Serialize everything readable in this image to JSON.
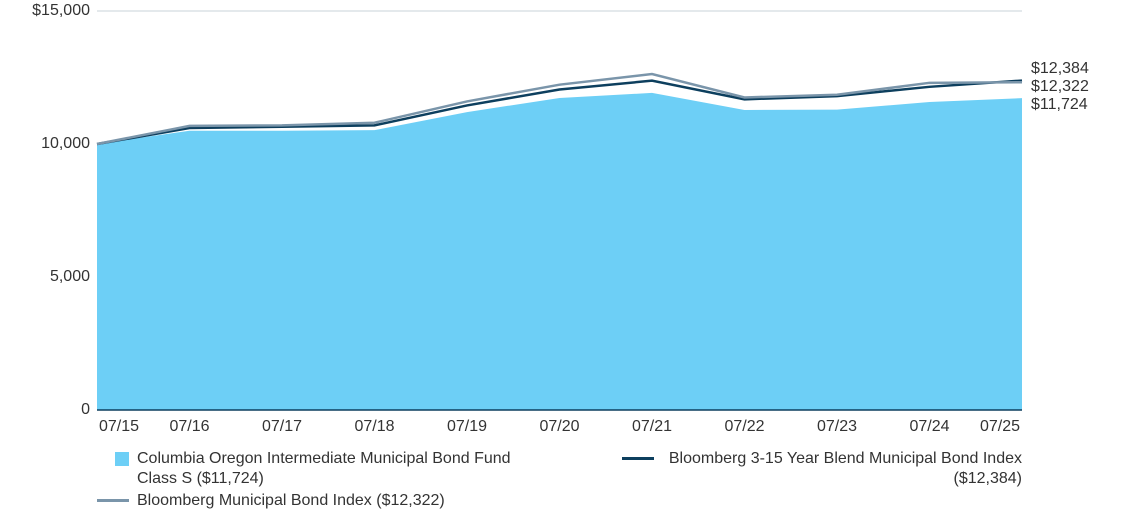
{
  "chart_data": {
    "type": "area",
    "categories": [
      "07/15",
      "07/16",
      "07/17",
      "07/18",
      "07/19",
      "07/20",
      "07/21",
      "07/22",
      "07/23",
      "07/24",
      "07/25"
    ],
    "series": [
      {
        "name": "Columbia Oregon Intermediate Municipal Bond Fund Class S ($11,724)",
        "color": "#6dcff6",
        "kind": "area",
        "values": [
          10000,
          10500,
          10500,
          10520,
          11200,
          11730,
          11920,
          11280,
          11290,
          11580,
          11724
        ],
        "value_labels": [
          null,
          null,
          null,
          null,
          null,
          null,
          null,
          null,
          null,
          null,
          "$11,724"
        ]
      },
      {
        "name": "Bloomberg 3-15 Year Blend Municipal Bond Index ($12,384)",
        "color": "#0d3f5e",
        "kind": "line",
        "values": [
          10000,
          10600,
          10650,
          10700,
          11450,
          12050,
          12380,
          11680,
          11800,
          12150,
          12384
        ],
        "value_labels": [
          null,
          null,
          null,
          null,
          null,
          null,
          null,
          null,
          null,
          null,
          "$12,384"
        ]
      },
      {
        "name": "Bloomberg Municipal Bond Index ($12,322)",
        "color": "#7a95aa",
        "kind": "line",
        "values": [
          10000,
          10680,
          10700,
          10800,
          11600,
          12230,
          12630,
          11750,
          11850,
          12300,
          12322
        ],
        "value_labels": [
          null,
          null,
          null,
          null,
          null,
          null,
          null,
          null,
          null,
          null,
          "$12,322"
        ]
      }
    ],
    "ylim": [
      0,
      15000
    ],
    "yticks": [
      0,
      {
        "value": 5000,
        "label": "5,000"
      },
      {
        "value": 10000,
        "label": "10,000"
      },
      {
        "value": 15000,
        "label": "$15,000"
      }
    ],
    "grid": true
  }
}
